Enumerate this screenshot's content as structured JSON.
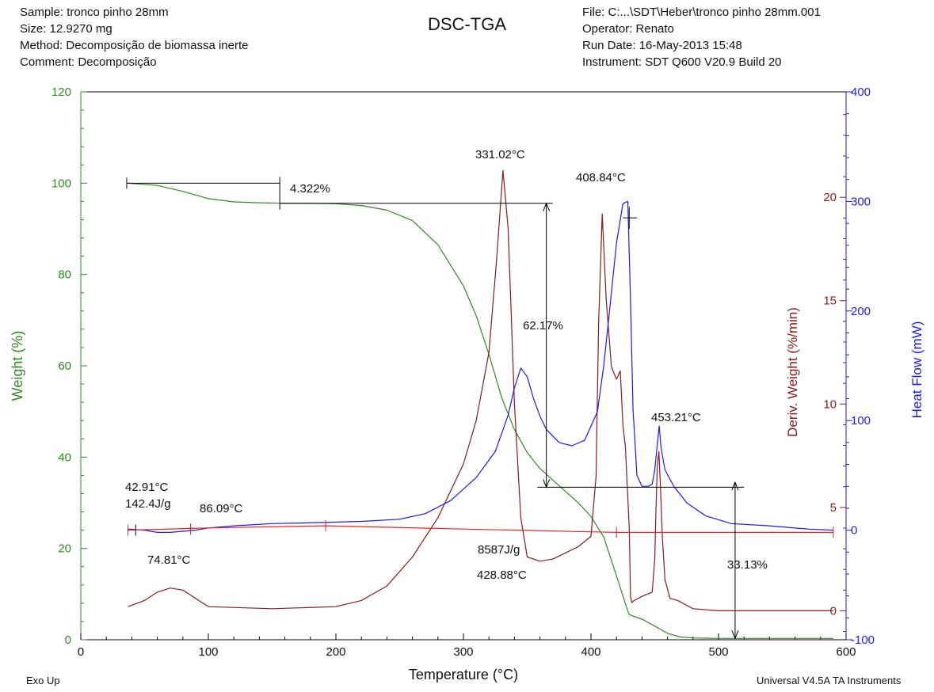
{
  "header": {
    "left": [
      "Sample: tronco pinho 28mm",
      "Size:  12.9270 mg",
      "Method: Decomposição de biomassa inerte",
      "Comment: Decomposição"
    ],
    "right": [
      "File: C:...\\SDT\\Heber\\tronco pinho 28mm.001",
      "Operator: Renato",
      "Run Date: 16-May-2013 15:48",
      "Instrument: SDT Q600 V20.9 Build 20"
    ],
    "title": "DSC-TGA"
  },
  "footer": {
    "left": "Exo Up",
    "right": "Universal V4.5A TA Instruments"
  },
  "colors": {
    "weight": "#2e8b22",
    "deriv": "#8b1a1a",
    "heat": "#1a1aee",
    "baseline": "#ee2222"
  },
  "chart_data": {
    "type": "line",
    "title": "DSC-TGA",
    "xlabel": "Temperature (°C)",
    "xlim": [
      0,
      600
    ],
    "xticks": [
      "0",
      "100",
      "200",
      "300",
      "400",
      "500",
      "600"
    ],
    "axes": {
      "weight": {
        "label": "Weight (%)",
        "lim": [
          0,
          120
        ],
        "ticks": [
          "0",
          "20",
          "40",
          "60",
          "80",
          "100",
          "120"
        ]
      },
      "deriv": {
        "label": "Deriv. Weight (%/min)",
        "lim": [
          -1.4,
          25.1
        ],
        "ticks": [
          "0",
          "5",
          "10",
          "15",
          "20"
        ]
      },
      "heat": {
        "label": "Heat Flow (mW)",
        "lim": [
          -100,
          400
        ],
        "ticks": [
          "-100",
          "0",
          "100",
          "200",
          "300",
          "400"
        ]
      }
    },
    "series": [
      {
        "key": "weight",
        "axis": "weight",
        "x": [
          36,
          60,
          80,
          100,
          120,
          140,
          160,
          180,
          200,
          220,
          240,
          260,
          280,
          300,
          310,
          320,
          330,
          340,
          350,
          360,
          370,
          380,
          390,
          400,
          410,
          420,
          428,
          430,
          440,
          450,
          460,
          470,
          480,
          500,
          550,
          590
        ],
        "y": [
          100,
          99.5,
          98.2,
          96.6,
          95.9,
          95.7,
          95.6,
          95.6,
          95.5,
          95.1,
          94.1,
          91.8,
          86.5,
          77.5,
          71,
          62.5,
          53,
          46,
          41,
          37.5,
          35,
          32.5,
          30,
          27,
          22.5,
          14,
          7,
          5.5,
          4.5,
          3,
          1.4,
          0.6,
          0.4,
          0.3,
          0.3,
          0.3
        ]
      },
      {
        "key": "deriv",
        "axis": "deriv",
        "x": [
          37,
          50,
          60,
          70,
          80,
          90,
          100,
          150,
          200,
          220,
          240,
          260,
          280,
          300,
          310,
          320,
          326,
          331,
          335,
          340,
          345,
          350,
          360,
          370,
          380,
          390,
          400,
          404,
          406,
          408.8,
          412,
          416,
          420,
          423,
          425,
          427,
          430,
          431,
          432,
          434,
          440,
          448,
          450,
          451,
          452,
          453.2,
          454.5,
          456,
          458,
          462,
          468,
          480,
          500,
          550,
          590
        ],
        "y": [
          0.2,
          0.5,
          0.9,
          1.1,
          1,
          0.6,
          0.2,
          0.1,
          0.2,
          0.5,
          1.2,
          2.6,
          4.5,
          7.1,
          9.2,
          12.5,
          17,
          21.3,
          18.5,
          10,
          4.5,
          2.6,
          2.4,
          2.5,
          2.8,
          3.1,
          3.6,
          6.5,
          14,
          19.2,
          15,
          11.8,
          11.2,
          11.6,
          9,
          7.9,
          4,
          0.7,
          0.4,
          0.5,
          0.7,
          0.9,
          2.5,
          5,
          7,
          7.7,
          6,
          3.5,
          1.5,
          0.6,
          0.5,
          0.1,
          0,
          0,
          0
        ]
      },
      {
        "key": "heat",
        "axis": "heat",
        "x": [
          37,
          50,
          60,
          70,
          80,
          90,
          100,
          120,
          150,
          190,
          220,
          250,
          270,
          290,
          310,
          325,
          335,
          340,
          345,
          350,
          355,
          360,
          365,
          375,
          385,
          395,
          405,
          410,
          415,
          420,
          425,
          428.9,
          431,
          433,
          436,
          440,
          445,
          448,
          450,
          452,
          453.5,
          455,
          458,
          465,
          475,
          490,
          510,
          540,
          570,
          590
        ],
        "y": [
          1,
          0,
          -2,
          -2,
          -1,
          0,
          2,
          4,
          6,
          7,
          8,
          10,
          15,
          27,
          48,
          72,
          105,
          130,
          148,
          140,
          120,
          104,
          92,
          80,
          77,
          82,
          108,
          150,
          205,
          262,
          298,
          300,
          210,
          110,
          50,
          40,
          40,
          42,
          55,
          78,
          95,
          75,
          55,
          40,
          25,
          13,
          6,
          4,
          1,
          0
        ]
      },
      {
        "key": "baseline",
        "axis": "heat",
        "x": [
          37,
          100,
          192,
          300,
          420,
          590
        ],
        "y": [
          0,
          2,
          4,
          1,
          -2,
          -2
        ]
      }
    ],
    "annotations": [
      "4.322%",
      "62.17%",
      "33.13%",
      "331.02°C",
      "408.84°C",
      "453.21°C",
      "42.91°C",
      "142.4J/g",
      "86.09°C",
      "74.81°C",
      "8587J/g",
      "428.88°C"
    ]
  }
}
